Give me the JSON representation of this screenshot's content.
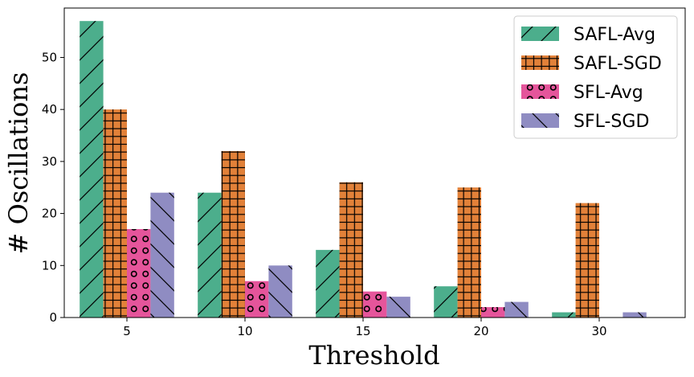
{
  "chart_data": {
    "type": "bar",
    "title": "",
    "xlabel": "Threshold",
    "ylabel": "# Oscillations",
    "categories": [
      "5",
      "10",
      "15",
      "20",
      "30"
    ],
    "ylim": [
      0,
      59.5
    ],
    "yticks": [
      0,
      10,
      20,
      30,
      40,
      50
    ],
    "grid": false,
    "legend_position": "top-right",
    "series": [
      {
        "name": "SAFL-Avg",
        "color": "#4cae8c",
        "hatch": "slash",
        "values": [
          57,
          24,
          13,
          6,
          1
        ]
      },
      {
        "name": "SAFL-SGD",
        "color": "#e28139",
        "hatch": "grid",
        "values": [
          40,
          32,
          26,
          25,
          22
        ]
      },
      {
        "name": "SFL-Avg",
        "color": "#e5559b",
        "hatch": "circles",
        "values": [
          17,
          7,
          5,
          2,
          0
        ]
      },
      {
        "name": "SFL-SGD",
        "color": "#8f8cc2",
        "hatch": "backslash",
        "values": [
          24,
          10,
          4,
          3,
          1
        ]
      }
    ]
  }
}
